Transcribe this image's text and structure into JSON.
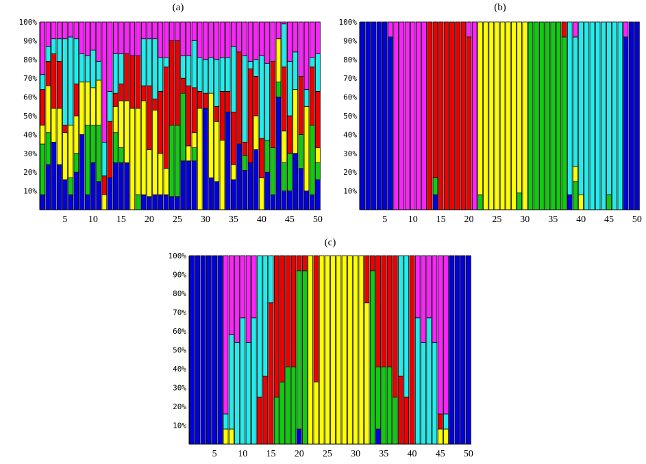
{
  "colors": {
    "blue": "#0000e0",
    "green": "#10cc10",
    "yellow": "#ffff00",
    "red": "#ee0000",
    "cyan": "#22ecec",
    "magenta": "#ff22ff"
  },
  "stack_order": [
    "blue",
    "green",
    "yellow",
    "red",
    "cyan",
    "magenta"
  ],
  "chart_data": [
    {
      "type": "bar",
      "title": "(a)",
      "stacked": true,
      "y_ticks": [
        "10%",
        "20%",
        "30%",
        "40%",
        "50%",
        "60%",
        "70%",
        "80%",
        "90%",
        "100%"
      ],
      "x_ticks": [
        "5",
        "10",
        "15",
        "20",
        "25",
        "30",
        "35",
        "40",
        "45",
        "50"
      ],
      "ylim": [
        0,
        100
      ],
      "categories": [
        1,
        2,
        3,
        4,
        5,
        6,
        7,
        8,
        9,
        10,
        11,
        12,
        13,
        14,
        15,
        16,
        17,
        18,
        19,
        20,
        21,
        22,
        23,
        24,
        25,
        26,
        27,
        28,
        29,
        30,
        31,
        32,
        33,
        34,
        35,
        36,
        37,
        38,
        39,
        40,
        41,
        42,
        43,
        44,
        45,
        46,
        47,
        48,
        49,
        50
      ],
      "bars": [
        [
          8,
          27,
          10,
          19,
          8,
          28
        ],
        [
          24,
          17,
          25,
          13,
          8,
          13
        ],
        [
          36,
          0,
          18,
          29,
          8,
          9
        ],
        [
          24,
          0,
          30,
          25,
          12,
          9
        ],
        [
          16,
          0,
          25,
          4,
          46,
          9
        ],
        [
          8,
          9,
          28,
          0,
          47,
          8
        ],
        [
          20,
          10,
          20,
          17,
          24,
          9
        ],
        [
          40,
          0,
          28,
          0,
          15,
          17
        ],
        [
          8,
          37,
          23,
          0,
          14,
          18
        ],
        [
          25,
          20,
          20,
          0,
          20,
          15
        ],
        [
          15,
          30,
          24,
          0,
          10,
          21
        ],
        [
          0,
          0,
          8,
          10,
          18,
          64
        ],
        [
          17,
          0,
          0,
          30,
          16,
          37
        ],
        [
          25,
          16,
          14,
          7,
          21,
          17
        ],
        [
          25,
          8,
          25,
          9,
          16,
          17
        ],
        [
          25,
          0,
          33,
          25,
          0,
          17
        ],
        [
          0,
          0,
          54,
          28,
          0,
          18
        ],
        [
          0,
          8,
          46,
          28,
          0,
          18
        ],
        [
          8,
          0,
          50,
          8,
          25,
          9
        ],
        [
          7,
          0,
          25,
          34,
          25,
          9
        ],
        [
          8,
          0,
          45,
          6,
          32,
          9
        ],
        [
          8,
          0,
          22,
          33,
          18,
          19
        ],
        [
          8,
          0,
          14,
          54,
          5,
          19
        ],
        [
          7,
          38,
          0,
          45,
          0,
          10
        ],
        [
          7,
          38,
          0,
          45,
          0,
          10
        ],
        [
          26,
          36,
          0,
          8,
          12,
          18
        ],
        [
          26,
          0,
          8,
          32,
          16,
          18
        ],
        [
          26,
          7,
          8,
          24,
          25,
          10
        ],
        [
          0,
          0,
          54,
          9,
          18,
          19
        ],
        [
          54,
          0,
          0,
          8,
          18,
          20
        ],
        [
          17,
          0,
          45,
          0,
          19,
          19
        ],
        [
          15,
          0,
          32,
          8,
          25,
          20
        ],
        [
          0,
          0,
          37,
          26,
          18,
          19
        ],
        [
          52,
          0,
          0,
          11,
          18,
          19
        ],
        [
          16,
          0,
          8,
          28,
          35,
          13
        ],
        [
          35,
          0,
          0,
          49,
          0,
          16
        ],
        [
          21,
          8,
          0,
          7,
          46,
          18
        ],
        [
          25,
          0,
          0,
          50,
          4,
          21
        ],
        [
          32,
          0,
          18,
          21,
          9,
          20
        ],
        [
          0,
          0,
          17,
          21,
          44,
          18
        ],
        [
          20,
          17,
          0,
          0,
          41,
          22
        ],
        [
          8,
          25,
          0,
          46,
          0,
          21
        ],
        [
          60,
          8,
          23,
          0,
          0,
          9
        ],
        [
          10,
          15,
          17,
          34,
          23,
          1
        ],
        [
          10,
          20,
          0,
          20,
          29,
          21
        ],
        [
          30,
          0,
          34,
          0,
          20,
          16
        ],
        [
          22,
          18,
          0,
          31,
          0,
          29
        ],
        [
          10,
          0,
          45,
          0,
          9,
          36
        ],
        [
          8,
          37,
          0,
          31,
          5,
          19
        ],
        [
          16,
          9,
          8,
          30,
          20,
          17
        ]
      ]
    },
    {
      "type": "bar",
      "title": "(b)",
      "stacked": true,
      "y_ticks": [
        "10%",
        "20%",
        "30%",
        "40%",
        "50%",
        "60%",
        "70%",
        "80%",
        "90%",
        "100%"
      ],
      "x_ticks": [
        "5",
        "10",
        "15",
        "20",
        "25",
        "30",
        "35",
        "40",
        "45",
        "50"
      ],
      "ylim": [
        0,
        100
      ],
      "categories": [
        1,
        2,
        3,
        4,
        5,
        6,
        7,
        8,
        9,
        10,
        11,
        12,
        13,
        14,
        15,
        16,
        17,
        18,
        19,
        20,
        21,
        22,
        23,
        24,
        25,
        26,
        27,
        28,
        29,
        30,
        31,
        32,
        33,
        34,
        35,
        36,
        37,
        38,
        39,
        40,
        41,
        42,
        43,
        44,
        45,
        46,
        47,
        48,
        49,
        50
      ],
      "bars": [
        [
          100,
          0,
          0,
          0,
          0,
          0
        ],
        [
          100,
          0,
          0,
          0,
          0,
          0
        ],
        [
          100,
          0,
          0,
          0,
          0,
          0
        ],
        [
          100,
          0,
          0,
          0,
          0,
          0
        ],
        [
          100,
          0,
          0,
          0,
          0,
          0
        ],
        [
          92,
          0,
          0,
          0,
          0,
          8
        ],
        [
          0,
          0,
          0,
          0,
          0,
          100
        ],
        [
          0,
          0,
          0,
          0,
          0,
          100
        ],
        [
          0,
          0,
          0,
          0,
          0,
          100
        ],
        [
          0,
          0,
          0,
          0,
          0,
          100
        ],
        [
          0,
          0,
          0,
          0,
          0,
          100
        ],
        [
          0,
          0,
          0,
          0,
          0,
          100
        ],
        [
          0,
          0,
          0,
          100,
          0,
          0
        ],
        [
          8,
          9,
          0,
          83,
          0,
          0
        ],
        [
          0,
          0,
          0,
          100,
          0,
          0
        ],
        [
          0,
          0,
          0,
          100,
          0,
          0
        ],
        [
          0,
          0,
          0,
          100,
          0,
          0
        ],
        [
          0,
          0,
          0,
          100,
          0,
          0
        ],
        [
          0,
          0,
          0,
          100,
          0,
          0
        ],
        [
          0,
          0,
          0,
          92,
          0,
          8
        ],
        [
          0,
          0,
          0,
          0,
          0,
          100
        ],
        [
          0,
          8,
          92,
          0,
          0,
          0
        ],
        [
          0,
          0,
          100,
          0,
          0,
          0
        ],
        [
          0,
          0,
          100,
          0,
          0,
          0
        ],
        [
          0,
          0,
          100,
          0,
          0,
          0
        ],
        [
          0,
          0,
          100,
          0,
          0,
          0
        ],
        [
          0,
          0,
          100,
          0,
          0,
          0
        ],
        [
          0,
          0,
          100,
          0,
          0,
          0
        ],
        [
          0,
          9,
          91,
          0,
          0,
          0
        ],
        [
          0,
          0,
          100,
          0,
          0,
          0
        ],
        [
          0,
          100,
          0,
          0,
          0,
          0
        ],
        [
          0,
          100,
          0,
          0,
          0,
          0
        ],
        [
          0,
          100,
          0,
          0,
          0,
          0
        ],
        [
          0,
          100,
          0,
          0,
          0,
          0
        ],
        [
          0,
          100,
          0,
          0,
          0,
          0
        ],
        [
          0,
          100,
          0,
          0,
          0,
          0
        ],
        [
          0,
          92,
          0,
          8,
          0,
          0
        ],
        [
          8,
          0,
          0,
          0,
          92,
          0
        ],
        [
          0,
          15,
          8,
          0,
          69,
          8
        ],
        [
          0,
          0,
          8,
          0,
          92,
          0
        ],
        [
          0,
          0,
          0,
          0,
          100,
          0
        ],
        [
          0,
          0,
          0,
          0,
          100,
          0
        ],
        [
          0,
          0,
          0,
          0,
          100,
          0
        ],
        [
          0,
          0,
          0,
          0,
          100,
          0
        ],
        [
          0,
          8,
          0,
          0,
          92,
          0
        ],
        [
          0,
          0,
          0,
          0,
          100,
          0
        ],
        [
          0,
          0,
          0,
          0,
          100,
          0
        ],
        [
          92,
          0,
          0,
          0,
          0,
          8
        ],
        [
          100,
          0,
          0,
          0,
          0,
          0
        ],
        [
          100,
          0,
          0,
          0,
          0,
          0
        ]
      ]
    },
    {
      "type": "bar",
      "title": "(c)",
      "stacked": true,
      "y_ticks": [
        "10%",
        "20%",
        "30%",
        "40%",
        "50%",
        "60%",
        "70%",
        "80%",
        "90%",
        "100%"
      ],
      "x_ticks": [
        "5",
        "10",
        "15",
        "20",
        "25",
        "30",
        "35",
        "40",
        "45",
        "50"
      ],
      "ylim": [
        0,
        100
      ],
      "categories": [
        1,
        2,
        3,
        4,
        5,
        6,
        7,
        8,
        9,
        10,
        11,
        12,
        13,
        14,
        15,
        16,
        17,
        18,
        19,
        20,
        21,
        22,
        23,
        24,
        25,
        26,
        27,
        28,
        29,
        30,
        31,
        32,
        33,
        34,
        35,
        36,
        37,
        38,
        39,
        40,
        41,
        42,
        43,
        44,
        45,
        46,
        47,
        48,
        49,
        50
      ],
      "bars": [
        [
          100,
          0,
          0,
          0,
          0,
          0
        ],
        [
          100,
          0,
          0,
          0,
          0,
          0
        ],
        [
          100,
          0,
          0,
          0,
          0,
          0
        ],
        [
          100,
          0,
          0,
          0,
          0,
          0
        ],
        [
          100,
          0,
          0,
          0,
          0,
          0
        ],
        [
          100,
          0,
          0,
          0,
          0,
          0
        ],
        [
          0,
          0,
          8,
          0,
          8,
          84
        ],
        [
          0,
          0,
          8,
          0,
          50,
          42
        ],
        [
          0,
          0,
          0,
          0,
          54,
          46
        ],
        [
          0,
          0,
          0,
          0,
          67,
          33
        ],
        [
          0,
          0,
          0,
          0,
          54,
          46
        ],
        [
          0,
          0,
          0,
          0,
          67,
          33
        ],
        [
          0,
          0,
          0,
          25,
          75,
          0
        ],
        [
          0,
          0,
          0,
          36,
          64,
          0
        ],
        [
          0,
          0,
          0,
          75,
          25,
          0
        ],
        [
          0,
          25,
          0,
          75,
          0,
          0
        ],
        [
          0,
          33,
          0,
          67,
          0,
          0
        ],
        [
          0,
          41,
          0,
          59,
          0,
          0
        ],
        [
          0,
          41,
          0,
          59,
          0,
          0
        ],
        [
          8,
          84,
          0,
          8,
          0,
          0
        ],
        [
          0,
          92,
          0,
          8,
          0,
          0
        ],
        [
          0,
          0,
          100,
          0,
          0,
          0
        ],
        [
          0,
          0,
          33,
          67,
          0,
          0
        ],
        [
          0,
          0,
          100,
          0,
          0,
          0
        ],
        [
          0,
          0,
          100,
          0,
          0,
          0
        ],
        [
          0,
          0,
          100,
          0,
          0,
          0
        ],
        [
          0,
          0,
          100,
          0,
          0,
          0
        ],
        [
          0,
          0,
          100,
          0,
          0,
          0
        ],
        [
          0,
          0,
          100,
          0,
          0,
          0
        ],
        [
          0,
          0,
          100,
          0,
          0,
          0
        ],
        [
          0,
          0,
          100,
          0,
          0,
          0
        ],
        [
          0,
          0,
          75,
          25,
          0,
          0
        ],
        [
          0,
          92,
          0,
          8,
          0,
          0
        ],
        [
          8,
          33,
          0,
          59,
          0,
          0
        ],
        [
          0,
          41,
          0,
          59,
          0,
          0
        ],
        [
          0,
          41,
          0,
          59,
          0,
          0
        ],
        [
          0,
          25,
          0,
          75,
          0,
          0
        ],
        [
          0,
          0,
          0,
          36,
          64,
          0
        ],
        [
          0,
          0,
          0,
          25,
          75,
          0
        ],
        [
          0,
          0,
          0,
          100,
          0,
          0
        ],
        [
          0,
          0,
          0,
          0,
          67,
          33
        ],
        [
          0,
          0,
          0,
          0,
          54,
          46
        ],
        [
          0,
          0,
          0,
          0,
          67,
          33
        ],
        [
          0,
          0,
          0,
          0,
          54,
          46
        ],
        [
          0,
          0,
          8,
          8,
          0,
          84
        ],
        [
          0,
          0,
          8,
          0,
          8,
          84
        ],
        [
          100,
          0,
          0,
          0,
          0,
          0
        ],
        [
          100,
          0,
          0,
          0,
          0,
          0
        ],
        [
          100,
          0,
          0,
          0,
          0,
          0
        ],
        [
          100,
          0,
          0,
          0,
          0,
          0
        ]
      ]
    }
  ]
}
